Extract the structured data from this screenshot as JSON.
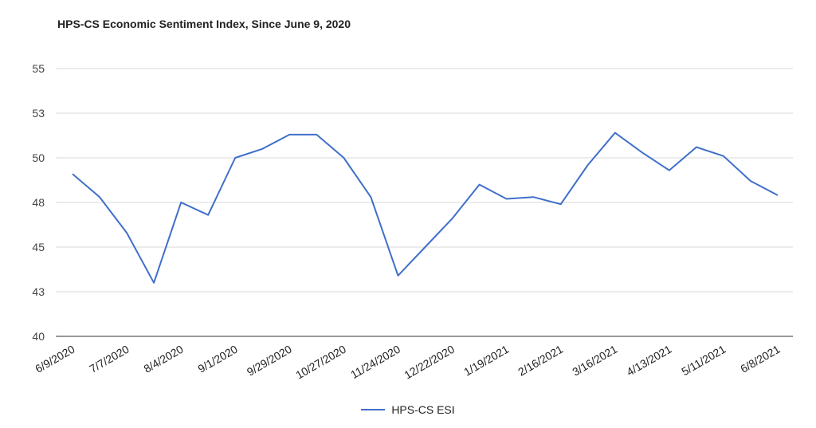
{
  "chart_data": {
    "type": "line",
    "title": "HPS-CS Economic Sentiment Index, Since June 9, 2020",
    "xlabel": "",
    "ylabel": "",
    "ylim": [
      40,
      55
    ],
    "y_ticks": [
      "55",
      "53",
      "50",
      "48",
      "45",
      "43",
      "40"
    ],
    "x_tick_labels": [
      "6/9/2020",
      "7/7/2020",
      "8/4/2020",
      "9/1/2020",
      "9/29/2020",
      "10/27/2020",
      "11/24/2020",
      "12/22/2020",
      "1/19/2021",
      "2/16/2021",
      "3/16/2021",
      "4/13/2021",
      "5/11/2021",
      "6/8/2021"
    ],
    "x": [
      "6/9/2020",
      "6/23/2020",
      "7/7/2020",
      "7/21/2020",
      "8/4/2020",
      "8/18/2020",
      "9/1/2020",
      "9/15/2020",
      "9/29/2020",
      "10/13/2020",
      "10/27/2020",
      "11/10/2020",
      "11/24/2020",
      "12/8/2020",
      "12/22/2020",
      "1/5/2021",
      "1/19/2021",
      "2/2/2021",
      "2/16/2021",
      "3/2/2021",
      "3/16/2021",
      "3/30/2021",
      "4/13/2021",
      "4/27/2021",
      "5/11/2021",
      "5/25/2021",
      "6/8/2021"
    ],
    "series": [
      {
        "name": "HPS-CS ESI",
        "color": "#3f6fc9",
        "values": [
          49.1,
          47.8,
          45.8,
          43.0,
          47.5,
          46.8,
          50.0,
          50.5,
          51.3,
          51.3,
          50.0,
          47.8,
          43.4,
          45.0,
          46.6,
          48.5,
          47.7,
          47.8,
          47.4,
          49.6,
          51.4,
          50.3,
          49.3,
          50.6,
          50.1,
          48.7,
          47.9
        ]
      }
    ],
    "grid": true,
    "legend": "bottom-center"
  }
}
